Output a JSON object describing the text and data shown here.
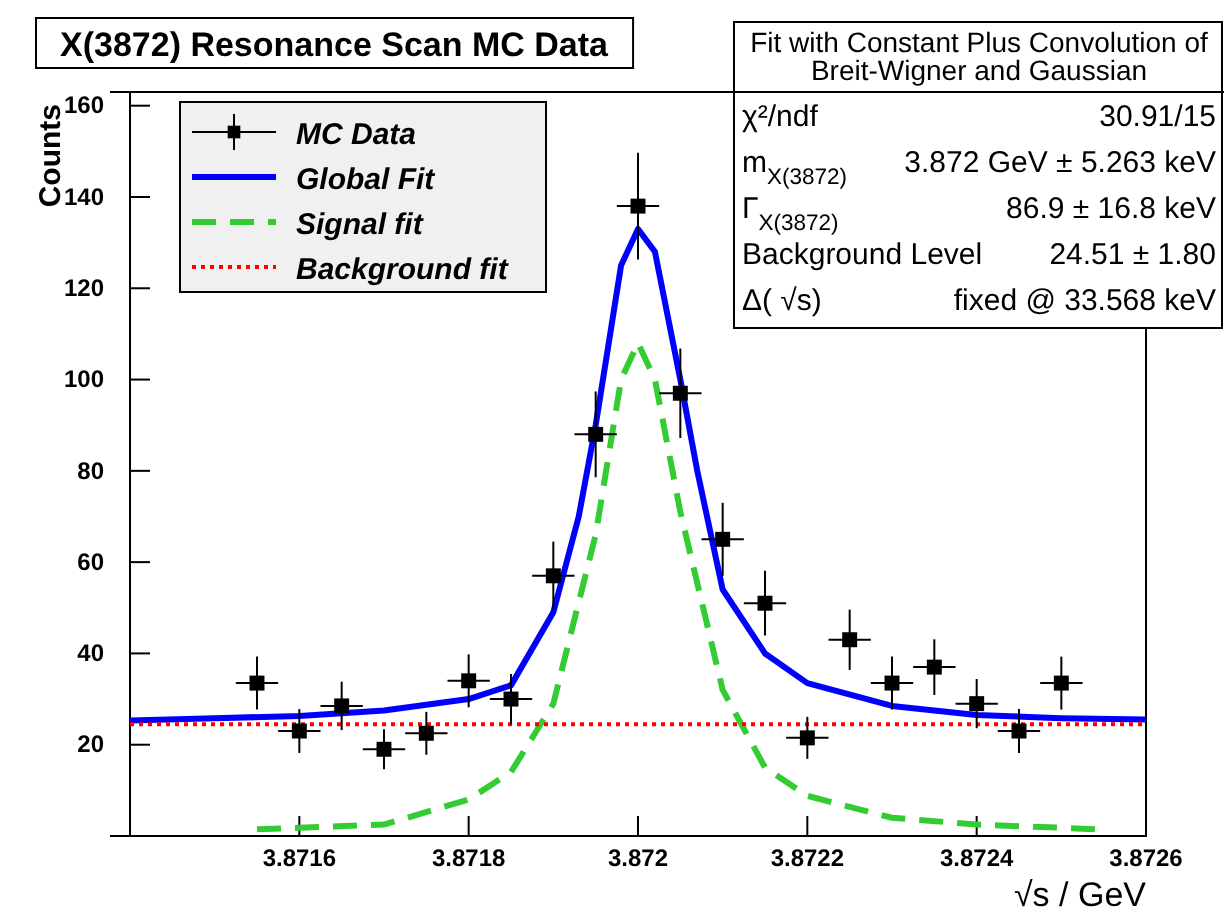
{
  "chart_data": {
    "type": "scatter",
    "title": "X(3872) Resonance Scan MC Data",
    "xlabel": "√s / GeV",
    "ylabel": "Counts",
    "xlim": [
      3.8714,
      3.8726
    ],
    "ylim": [
      0,
      163
    ],
    "xticks": [
      3.8716,
      3.8718,
      3.872,
      3.8722,
      3.8724,
      3.8726
    ],
    "yticks": [
      20,
      40,
      60,
      80,
      100,
      120,
      140,
      160
    ],
    "legend": "top left",
    "series": [
      {
        "name": "MC Data",
        "marker": "square",
        "color": "#000000",
        "x": [
          3.87155,
          3.8716,
          3.87165,
          3.8717,
          3.87175,
          3.8718,
          3.87185,
          3.8719,
          3.87195,
          3.872,
          3.87205,
          3.8721,
          3.87215,
          3.8722,
          3.87225,
          3.8723,
          3.87235,
          3.8724,
          3.87245,
          3.8725
        ],
        "values": [
          33.5,
          23,
          28.5,
          19,
          22.5,
          34,
          30,
          57,
          88,
          138,
          97,
          65,
          51,
          21.5,
          43,
          33.5,
          37,
          29,
          23,
          33.5
        ],
        "errors": [
          5.8,
          4.8,
          5.3,
          4.4,
          4.7,
          5.8,
          5.5,
          7.5,
          9.4,
          11.7,
          9.8,
          8,
          7.1,
          4.6,
          6.6,
          5.8,
          6.1,
          5.4,
          4.8,
          5.8
        ],
        "xerrors": [
          2.5e-05,
          2.5e-05,
          2.5e-05,
          2.5e-05,
          2.5e-05,
          2.5e-05,
          2.5e-05,
          2.5e-05,
          2.5e-05,
          2.5e-05,
          2.5e-05,
          2.5e-05,
          2.5e-05,
          2.5e-05,
          2.5e-05,
          2.5e-05,
          2.5e-05,
          2.5e-05,
          2.5e-05,
          2.5e-05
        ]
      },
      {
        "name": "Global Fit",
        "type": "line",
        "color": "#0000ff",
        "line_style": "solid",
        "x": [
          3.8714,
          3.8715,
          3.8716,
          3.8717,
          3.8718,
          3.87185,
          3.8719,
          3.87193,
          3.87195,
          3.87198,
          3.872,
          3.87202,
          3.87205,
          3.87207,
          3.8721,
          3.87215,
          3.8722,
          3.8723,
          3.8724,
          3.8725,
          3.8726
        ],
        "values": [
          25.3,
          25.8,
          26.3,
          27.5,
          30,
          33,
          49,
          70,
          90,
          125,
          133,
          128,
          100,
          80,
          54,
          40,
          33.5,
          28.5,
          26.5,
          25.8,
          25.5
        ]
      },
      {
        "name": "Signal fit",
        "type": "line",
        "color": "#33cc33",
        "line_style": "dashed",
        "x": [
          3.87155,
          3.8716,
          3.8717,
          3.8718,
          3.87185,
          3.8719,
          3.87195,
          3.87198,
          3.872,
          3.87202,
          3.87205,
          3.8721,
          3.87215,
          3.8722,
          3.8723,
          3.8724,
          3.8725,
          3.87254
        ],
        "values": [
          1.5,
          1.8,
          2.5,
          8,
          14,
          29,
          66,
          100,
          108,
          100,
          71,
          32,
          15,
          8.8,
          4,
          2.5,
          1.8,
          1.5
        ]
      },
      {
        "name": "Background fit",
        "type": "line",
        "color": "#ff0000",
        "line_style": "dotted",
        "x": [
          3.8714,
          3.8726
        ],
        "values": [
          24.51,
          24.51
        ]
      }
    ],
    "annotations": [
      "Fit with Constant Plus Convolution of Breit-Wigner and Gaussian",
      "χ²/ndf",
      "30.91/15",
      "m$_{X(3872)}$",
      "3.872 GeV ± 5.263 keV",
      "Γ$_{X(3872)}$",
      "86.9 ± 16.8  keV",
      "Background Level",
      "24.51 ± 1.80",
      "Δ( √s)",
      "fixed @ 33.568  keV"
    ]
  }
}
